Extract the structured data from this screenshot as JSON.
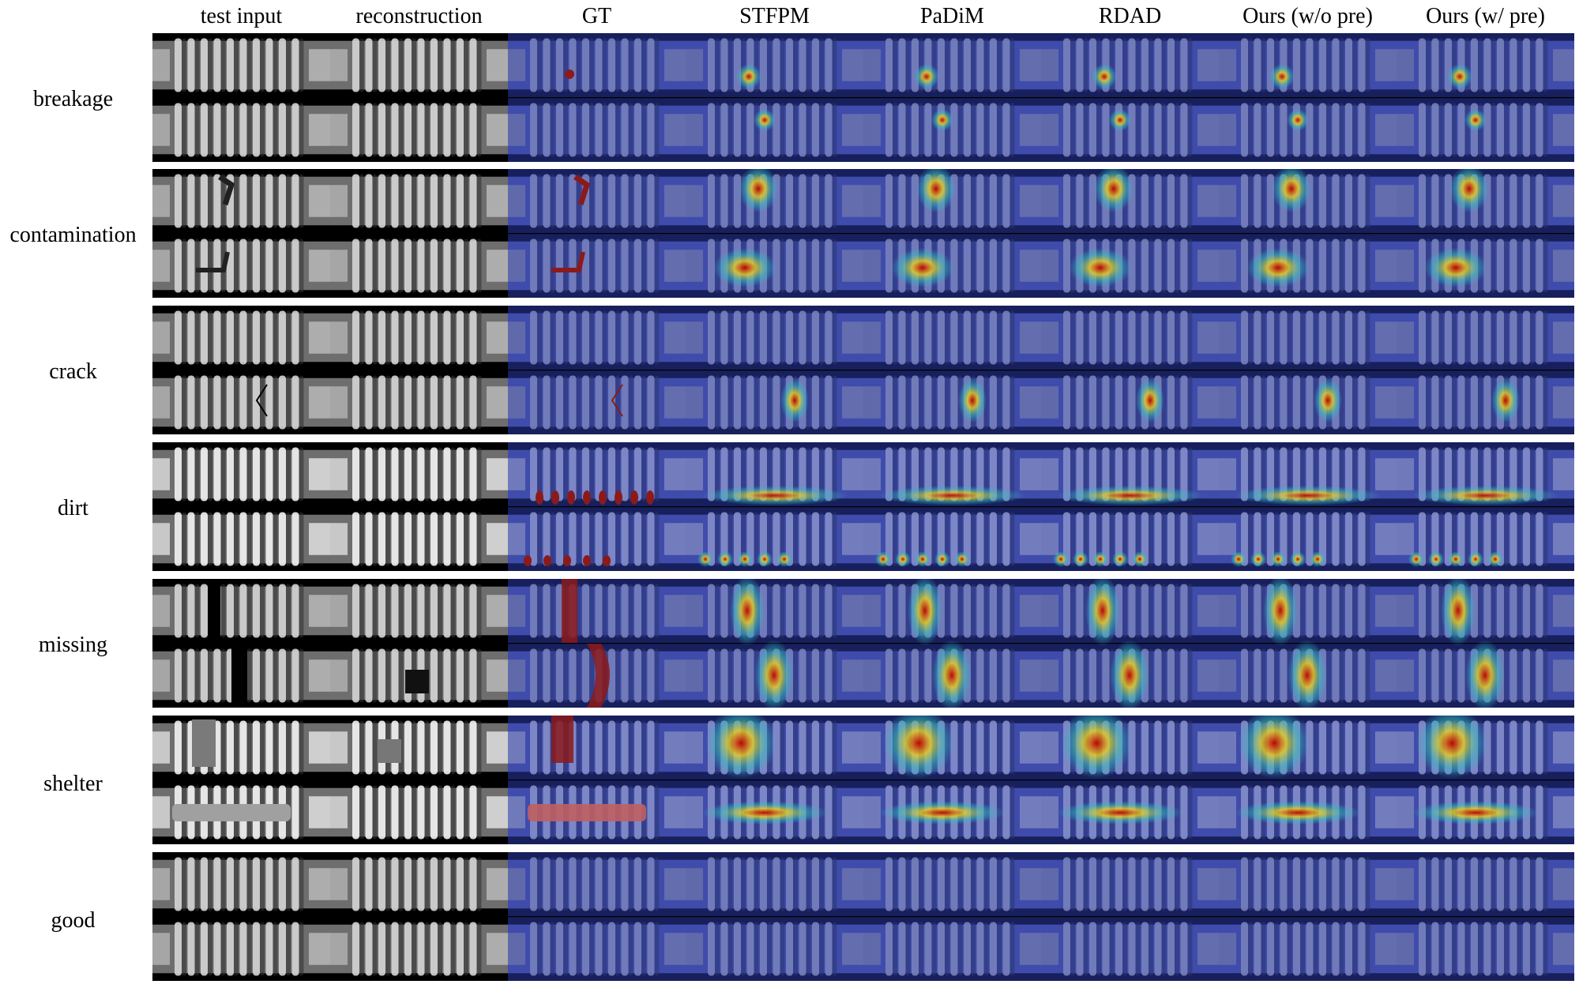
{
  "figure": {
    "columns": [
      {
        "label": "test input",
        "kind": "input"
      },
      {
        "label": "reconstruction",
        "kind": "recon"
      },
      {
        "label": "GT",
        "kind": "gt"
      },
      {
        "label": "STFPM",
        "kind": "heatmap"
      },
      {
        "label": "PaDiM",
        "kind": "heatmap"
      },
      {
        "label": "RDAD",
        "kind": "heatmap"
      },
      {
        "label": "Ours (w/o pre)",
        "kind": "heatmap"
      },
      {
        "label": "Ours (w/ pre)",
        "kind": "heatmap"
      }
    ],
    "rows": [
      {
        "label": "breakage"
      },
      {
        "label": "contamination"
      },
      {
        "label": "crack"
      },
      {
        "label": "dirt"
      },
      {
        "label": "missing"
      },
      {
        "label": "shelter"
      },
      {
        "label": "good"
      }
    ],
    "colors": {
      "background": "#ffffff",
      "insulator_gray": "#9a9a9a",
      "heatmap_base": "#2a3aa8",
      "gt_mask": "#8b1a1a",
      "heat_high": "#c00000",
      "heat_mid": "#e8d020",
      "heat_low": "#30c0c0"
    }
  }
}
